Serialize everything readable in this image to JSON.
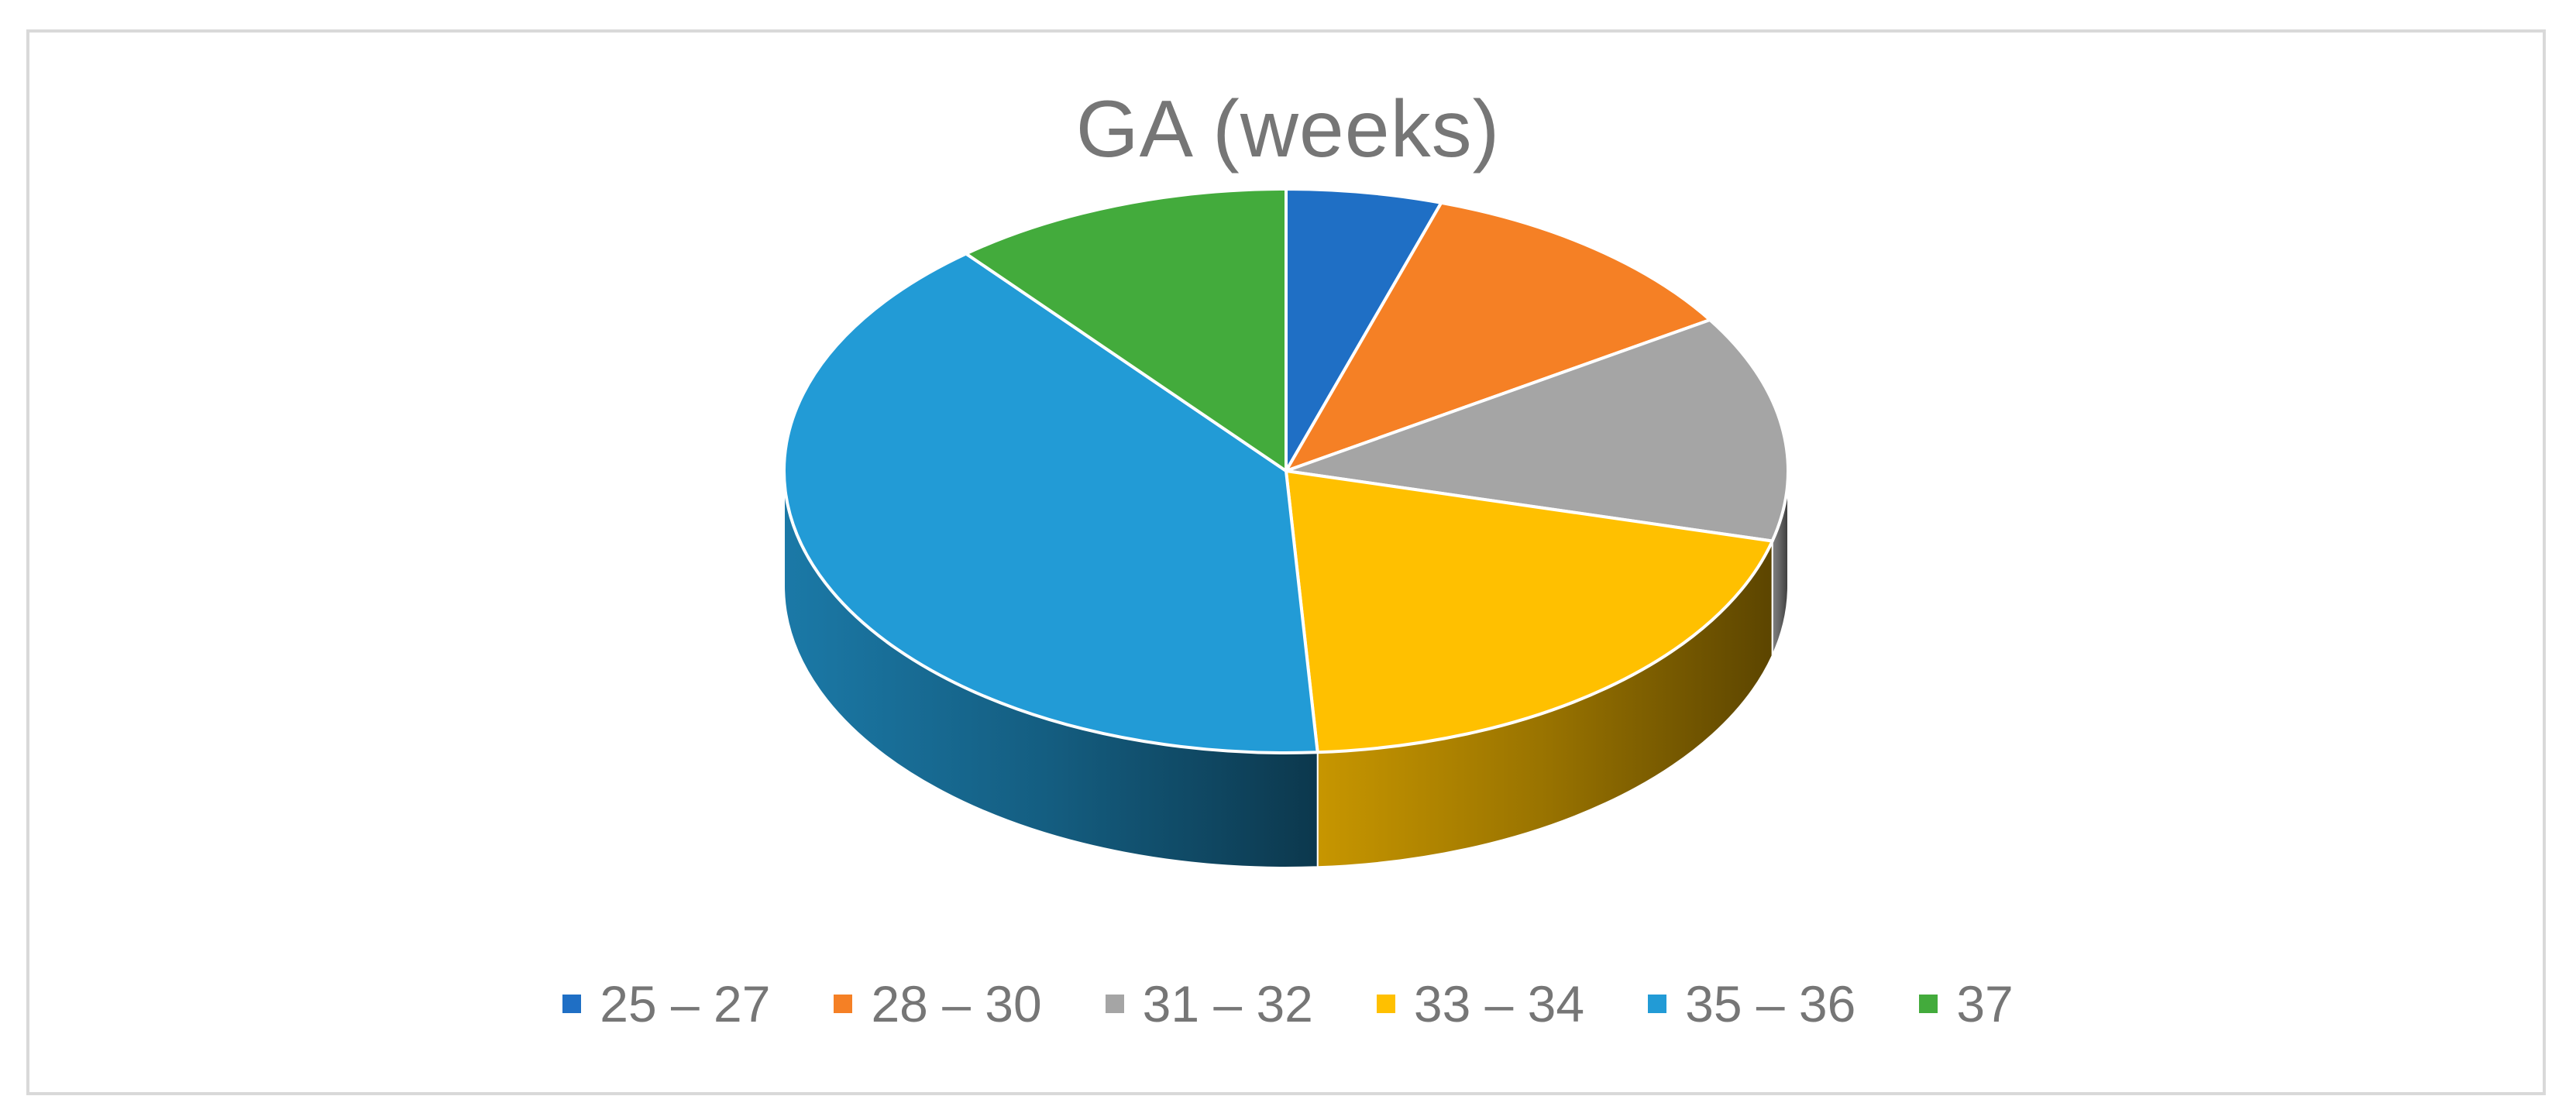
{
  "chart_data": {
    "type": "pie",
    "style": "3d",
    "title": "GA (weeks)",
    "legend_position": "bottom",
    "categories": [
      "25 – 27",
      "28 – 30",
      "31 – 32",
      "33 – 34",
      "35 – 36",
      "37"
    ],
    "values": [
      5,
      11,
      13,
      20,
      40,
      11
    ],
    "colors": [
      "#1f6fc5",
      "#f58025",
      "#a5a5a5",
      "#ffc000",
      "#229bd6",
      "#43ab3c"
    ]
  }
}
